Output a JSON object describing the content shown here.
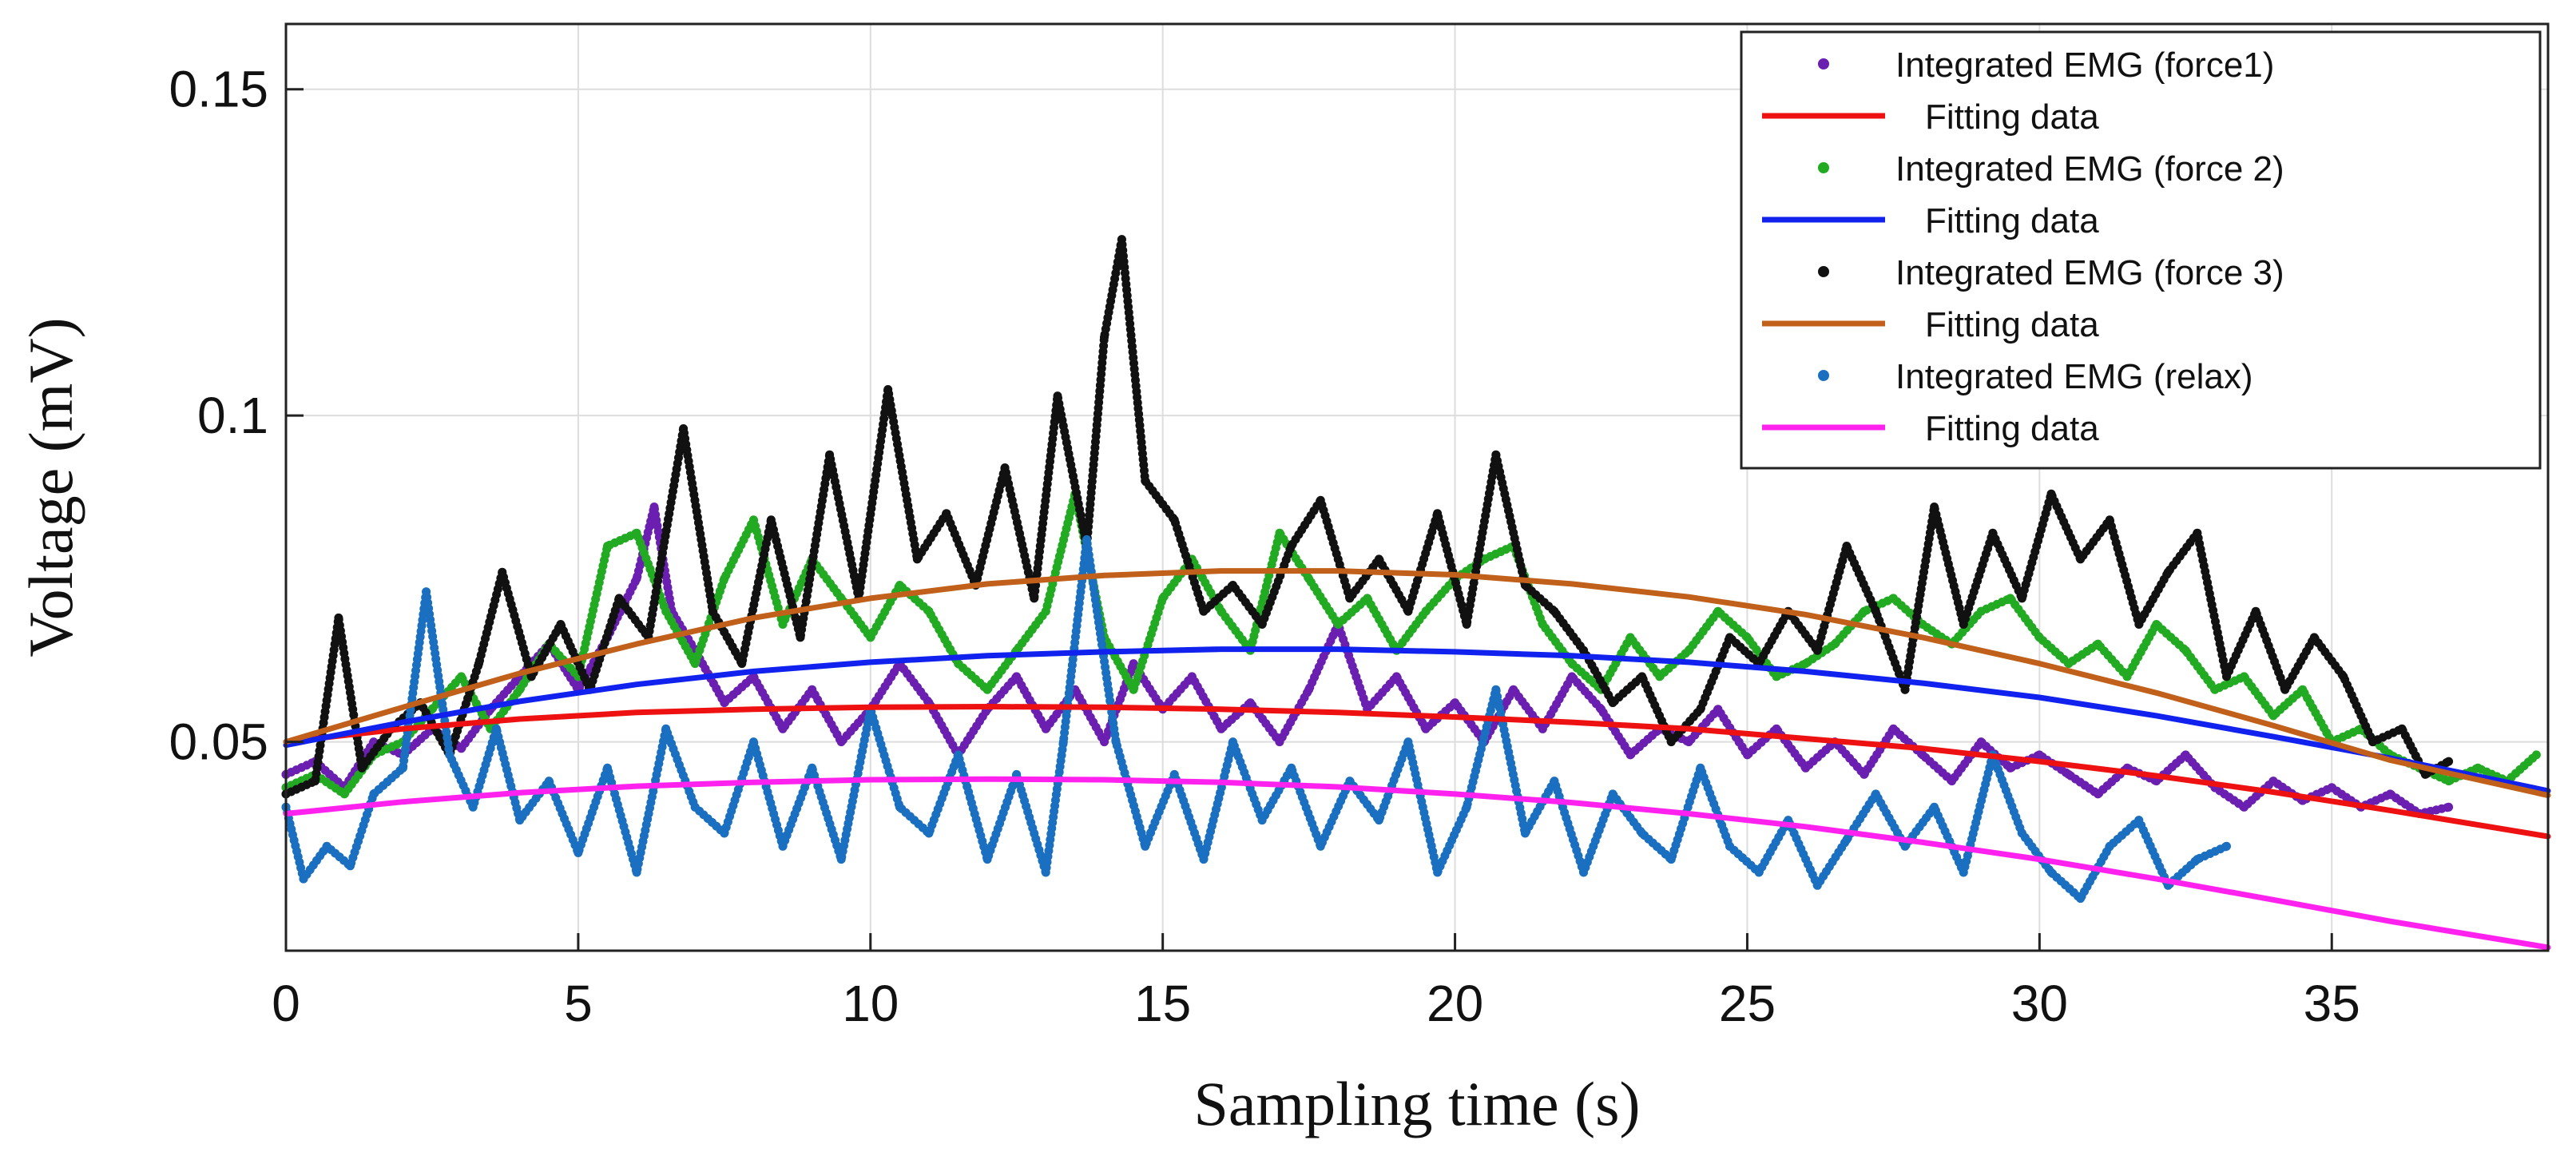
{
  "chart_data": {
    "type": "line",
    "title": "",
    "xlabel": "Sampling time (s)",
    "ylabel": "Voltage (mV)",
    "xlim": [
      0,
      38.7
    ],
    "ylim": [
      0.018,
      0.16
    ],
    "xticks": [
      {
        "value": 0,
        "label": "0"
      },
      {
        "value": 5,
        "label": "5"
      },
      {
        "value": 10,
        "label": "10"
      },
      {
        "value": 15,
        "label": "15"
      },
      {
        "value": 20,
        "label": "20"
      },
      {
        "value": 25,
        "label": "25"
      },
      {
        "value": 30,
        "label": "30"
      },
      {
        "value": 35,
        "label": "35"
      }
    ],
    "yticks": [
      {
        "value": 0.05,
        "label": "0.05"
      },
      {
        "value": 0.1,
        "label": "0.1"
      },
      {
        "value": 0.15,
        "label": "0.15"
      }
    ],
    "grid": true,
    "legend_position": "top-right",
    "series": [
      {
        "name": "Integrated EMG (force1)",
        "kind": "points",
        "color": "#6a1fb0",
        "x": [
          0,
          0.5,
          1,
          1.5,
          2,
          2.5,
          3,
          3.5,
          4,
          4.5,
          5,
          5.5,
          6,
          6.3,
          6.6,
          7,
          7.5,
          8,
          8.5,
          9,
          9.5,
          10,
          10.5,
          11,
          11.5,
          12,
          12.5,
          13,
          13.5,
          14,
          14.5,
          15,
          15.5,
          16,
          16.5,
          17,
          17.5,
          18,
          18.5,
          19,
          19.5,
          20,
          20.5,
          21,
          21.5,
          22,
          22.5,
          23,
          23.5,
          24,
          24.5,
          25,
          25.5,
          26,
          26.5,
          27,
          27.5,
          28,
          28.5,
          29,
          29.5,
          30,
          30.5,
          31,
          31.5,
          32,
          32.5,
          33,
          33.5,
          34,
          34.5,
          35,
          35.5,
          36,
          36.5,
          37
        ],
        "y": [
          0.045,
          0.047,
          0.043,
          0.05,
          0.048,
          0.052,
          0.049,
          0.055,
          0.06,
          0.065,
          0.058,
          0.066,
          0.075,
          0.086,
          0.07,
          0.064,
          0.056,
          0.06,
          0.052,
          0.058,
          0.05,
          0.055,
          0.062,
          0.056,
          0.048,
          0.055,
          0.06,
          0.052,
          0.058,
          0.05,
          0.062,
          0.055,
          0.06,
          0.052,
          0.056,
          0.05,
          0.058,
          0.068,
          0.055,
          0.06,
          0.052,
          0.056,
          0.05,
          0.058,
          0.052,
          0.06,
          0.055,
          0.048,
          0.052,
          0.05,
          0.055,
          0.048,
          0.052,
          0.046,
          0.05,
          0.045,
          0.052,
          0.048,
          0.044,
          0.05,
          0.046,
          0.048,
          0.045,
          0.042,
          0.046,
          0.044,
          0.048,
          0.043,
          0.04,
          0.044,
          0.041,
          0.043,
          0.04,
          0.042,
          0.039,
          0.04
        ]
      },
      {
        "name": "Fitting data",
        "kind": "line",
        "color": "#ee1111",
        "x": [
          0,
          2,
          4,
          6,
          8,
          10,
          12,
          14,
          16,
          18,
          20,
          22,
          24,
          26,
          28,
          30,
          32,
          34,
          36,
          38.7
        ],
        "y": [
          0.05,
          0.052,
          0.0535,
          0.0545,
          0.055,
          0.0553,
          0.0554,
          0.0553,
          0.055,
          0.0545,
          0.0538,
          0.053,
          0.052,
          0.0505,
          0.049,
          0.047,
          0.0448,
          0.0423,
          0.0395,
          0.0355
        ]
      },
      {
        "name": "Integrated EMG (force 2)",
        "kind": "points",
        "color": "#22aa22",
        "x": [
          0,
          0.5,
          1,
          1.5,
          2,
          2.5,
          3,
          3.5,
          4,
          4.5,
          5,
          5.5,
          6,
          6.5,
          7,
          7.5,
          8,
          8.5,
          9,
          9.5,
          10,
          10.5,
          11,
          11.5,
          12,
          12.5,
          13,
          13.5,
          14,
          14.5,
          15,
          15.5,
          16,
          16.5,
          17,
          17.5,
          18,
          18.5,
          19,
          19.5,
          20,
          20.5,
          21,
          21.5,
          22,
          22.5,
          23,
          23.5,
          24,
          24.5,
          25,
          25.5,
          26,
          26.5,
          27,
          27.5,
          28,
          28.5,
          29,
          29.5,
          30,
          30.5,
          31,
          31.5,
          32,
          32.5,
          33,
          33.5,
          34,
          34.5,
          35,
          35.5,
          36,
          36.5,
          37,
          37.5,
          38,
          38.5
        ],
        "y": [
          0.043,
          0.045,
          0.042,
          0.048,
          0.05,
          0.055,
          0.06,
          0.052,
          0.058,
          0.065,
          0.06,
          0.08,
          0.082,
          0.07,
          0.062,
          0.075,
          0.084,
          0.068,
          0.078,
          0.072,
          0.066,
          0.074,
          0.07,
          0.062,
          0.058,
          0.064,
          0.07,
          0.088,
          0.066,
          0.058,
          0.072,
          0.078,
          0.07,
          0.064,
          0.082,
          0.075,
          0.068,
          0.072,
          0.064,
          0.07,
          0.075,
          0.078,
          0.08,
          0.068,
          0.062,
          0.058,
          0.066,
          0.06,
          0.064,
          0.07,
          0.066,
          0.06,
          0.062,
          0.065,
          0.07,
          0.072,
          0.068,
          0.065,
          0.07,
          0.072,
          0.066,
          0.062,
          0.065,
          0.06,
          0.068,
          0.064,
          0.058,
          0.06,
          0.054,
          0.058,
          0.05,
          0.052,
          0.048,
          0.046,
          0.044,
          0.046,
          0.044,
          0.048
        ]
      },
      {
        "name": "Fitting data",
        "kind": "line",
        "color": "#1122ee",
        "x": [
          0,
          2,
          4,
          6,
          8,
          10,
          12,
          14,
          16,
          18,
          20,
          22,
          24,
          26,
          28,
          30,
          32,
          34,
          36,
          38.7
        ],
        "y": [
          0.0495,
          0.053,
          0.0562,
          0.0588,
          0.0608,
          0.0622,
          0.0632,
          0.0638,
          0.0642,
          0.0642,
          0.0638,
          0.0632,
          0.0622,
          0.0608,
          0.059,
          0.0568,
          0.054,
          0.0508,
          0.0475,
          0.0425
        ]
      },
      {
        "name": "Integrated EMG (force 3)",
        "kind": "points",
        "color": "#111111",
        "x": [
          0,
          0.5,
          0.9,
          1.3,
          1.8,
          2.3,
          2.8,
          3.3,
          3.7,
          4.2,
          4.7,
          5.2,
          5.7,
          6.2,
          6.8,
          7.3,
          7.8,
          8.3,
          8.8,
          9.3,
          9.8,
          10.3,
          10.8,
          11.3,
          11.8,
          12.3,
          12.8,
          13.2,
          13.7,
          14.0,
          14.3,
          14.7,
          15.2,
          15.7,
          16.2,
          16.7,
          17.2,
          17.7,
          18.2,
          18.7,
          19.2,
          19.7,
          20.2,
          20.7,
          21.2,
          21.7,
          22.2,
          22.7,
          23.2,
          23.7,
          24.2,
          24.7,
          25.2,
          25.7,
          26.2,
          26.7,
          27.2,
          27.7,
          28.2,
          28.7,
          29.2,
          29.7,
          30.2,
          30.7,
          31.2,
          31.7,
          32.2,
          32.7,
          33.2,
          33.7,
          34.2,
          34.7,
          35.2,
          35.7,
          36.2,
          36.6,
          37
        ],
        "y": [
          0.042,
          0.044,
          0.069,
          0.046,
          0.052,
          0.056,
          0.048,
          0.062,
          0.076,
          0.06,
          0.068,
          0.058,
          0.072,
          0.066,
          0.098,
          0.07,
          0.062,
          0.084,
          0.066,
          0.094,
          0.072,
          0.104,
          0.078,
          0.085,
          0.074,
          0.092,
          0.072,
          0.103,
          0.08,
          0.112,
          0.127,
          0.09,
          0.084,
          0.07,
          0.074,
          0.068,
          0.08,
          0.087,
          0.072,
          0.078,
          0.07,
          0.085,
          0.068,
          0.094,
          0.074,
          0.07,
          0.064,
          0.056,
          0.06,
          0.05,
          0.055,
          0.066,
          0.062,
          0.07,
          0.064,
          0.08,
          0.07,
          0.058,
          0.086,
          0.068,
          0.082,
          0.072,
          0.088,
          0.078,
          0.084,
          0.068,
          0.076,
          0.082,
          0.06,
          0.07,
          0.058,
          0.066,
          0.06,
          0.05,
          0.052,
          0.045,
          0.047
        ]
      },
      {
        "name": "Fitting data",
        "kind": "line",
        "color": "#c0601a",
        "x": [
          0,
          2,
          4,
          6,
          8,
          10,
          12,
          14,
          16,
          18,
          20,
          22,
          24,
          26,
          28,
          30,
          32,
          34,
          36,
          38.7
        ],
        "y": [
          0.05,
          0.0553,
          0.0605,
          0.065,
          0.069,
          0.072,
          0.0742,
          0.0755,
          0.0762,
          0.0762,
          0.0756,
          0.0742,
          0.0722,
          0.0695,
          0.066,
          0.062,
          0.0575,
          0.0525,
          0.0472,
          0.0418
        ]
      },
      {
        "name": "Integrated EMG (relax)",
        "kind": "points",
        "color": "#1a6fc0",
        "x": [
          0,
          0.3,
          0.7,
          1.1,
          1.5,
          2,
          2.4,
          2.8,
          3.2,
          3.6,
          4,
          4.5,
          5,
          5.5,
          6,
          6.5,
          7,
          7.5,
          8,
          8.5,
          9,
          9.5,
          10,
          10.5,
          11,
          11.5,
          12,
          12.5,
          13,
          13.3,
          13.7,
          14.2,
          14.7,
          15.2,
          15.7,
          16.2,
          16.7,
          17.2,
          17.7,
          18.2,
          18.7,
          19.2,
          19.7,
          20.2,
          20.7,
          21.2,
          21.7,
          22.2,
          22.7,
          23.2,
          23.7,
          24.2,
          24.7,
          25.2,
          25.7,
          26.2,
          26.7,
          27.2,
          27.7,
          28.2,
          28.7,
          29.2,
          29.7,
          30.2,
          30.7,
          31.2,
          31.7,
          32.2,
          32.7,
          33.2
        ],
        "y": [
          0.04,
          0.029,
          0.034,
          0.031,
          0.042,
          0.046,
          0.073,
          0.048,
          0.04,
          0.052,
          0.038,
          0.044,
          0.033,
          0.046,
          0.03,
          0.052,
          0.04,
          0.036,
          0.05,
          0.034,
          0.046,
          0.032,
          0.055,
          0.04,
          0.036,
          0.048,
          0.032,
          0.045,
          0.03,
          0.05,
          0.081,
          0.05,
          0.034,
          0.045,
          0.032,
          0.05,
          0.038,
          0.046,
          0.034,
          0.044,
          0.038,
          0.05,
          0.03,
          0.04,
          0.058,
          0.036,
          0.044,
          0.03,
          0.042,
          0.036,
          0.032,
          0.046,
          0.034,
          0.03,
          0.038,
          0.028,
          0.035,
          0.042,
          0.034,
          0.04,
          0.03,
          0.048,
          0.036,
          0.03,
          0.026,
          0.034,
          0.038,
          0.028,
          0.032,
          0.034
        ]
      },
      {
        "name": "Fitting data",
        "kind": "line",
        "color": "#ff22ee",
        "x": [
          0,
          2,
          4,
          6,
          8,
          10,
          12,
          14,
          16,
          18,
          20,
          22,
          24,
          26,
          28,
          30,
          32,
          34,
          36,
          38.7
        ],
        "y": [
          0.039,
          0.0408,
          0.0422,
          0.0432,
          0.0438,
          0.0442,
          0.0443,
          0.0442,
          0.0438,
          0.0431,
          0.042,
          0.0407,
          0.039,
          0.037,
          0.0346,
          0.032,
          0.029,
          0.0258,
          0.0225,
          0.0185
        ]
      }
    ]
  }
}
